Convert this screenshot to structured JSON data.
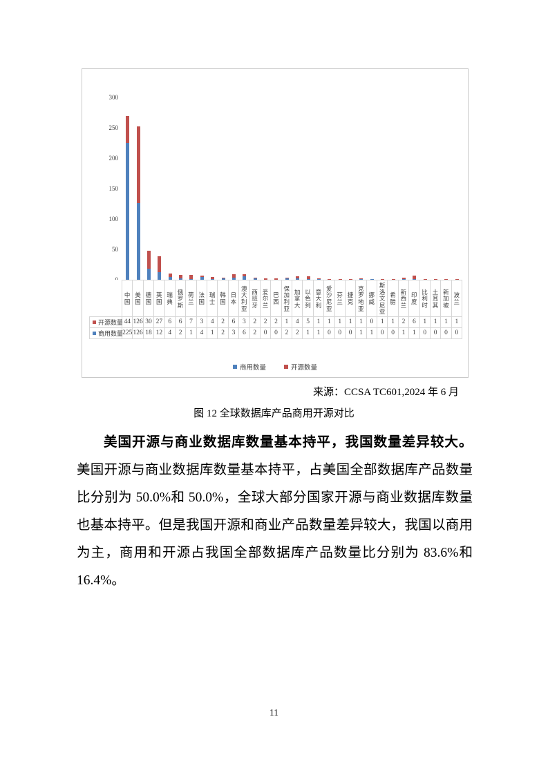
{
  "figure": {
    "source": "来源：CCSA TC601,2024 年 6 月",
    "caption": "图 12 全球数据库产品商用开源对比"
  },
  "chart_data": {
    "type": "bar",
    "stacked": true,
    "title": "",
    "xlabel": "",
    "ylabel": "",
    "ylim": [
      0,
      300
    ],
    "yticks": [
      0,
      50,
      100,
      150,
      200,
      250,
      300
    ],
    "grid": false,
    "legend_position": "bottom",
    "categories": [
      "中国",
      "美国",
      "德国",
      "英国",
      "瑞典",
      "俄罗斯",
      "荷兰",
      "法国",
      "瑞士",
      "韩国",
      "日本",
      "澳大利亚",
      "西班牙",
      "爱尔兰",
      "巴西",
      "保加利亚",
      "加拿大",
      "以色列",
      "意大利",
      "爱沙尼亚",
      "芬兰",
      "捷克",
      "克罗地亚",
      "挪威",
      "斯洛文尼亚",
      "希腊",
      "新西兰",
      "印度",
      "比利时",
      "土耳其",
      "新加坡",
      "波兰"
    ],
    "series": [
      {
        "name": "商用数量",
        "color": "#4F81BD",
        "values": [
          225,
          126,
          18,
          12,
          4,
          2,
          1,
          4,
          1,
          2,
          3,
          6,
          2,
          0,
          0,
          2,
          2,
          1,
          1,
          0,
          0,
          0,
          1,
          1,
          0,
          0,
          1,
          1,
          0,
          0,
          0,
          0
        ]
      },
      {
        "name": "开源数量",
        "color": "#C0504D",
        "values": [
          44,
          126,
          30,
          27,
          6,
          6,
          7,
          3,
          4,
          2,
          6,
          3,
          2,
          2,
          2,
          1,
          4,
          5,
          1,
          1,
          1,
          1,
          1,
          0,
          1,
          1,
          2,
          6,
          1,
          1,
          1,
          1
        ]
      }
    ],
    "table_row_series_order": [
      1,
      0
    ]
  },
  "paragraph": {
    "bold_lead": "美国开源与商业数据库数量基本持平，我国数量差异较大。",
    "body": "美国开源与商业数据库数量基本持平，占美国全部数据库产品数量比分别为 50.0%和 50.0%，全球大部分国家开源与商业数据库数量也基本持平。但是我国开源和商业产品数量差异较大，我国以商用为主，商用和开源占我国全部数据库产品数量比分别为 83.6%和 16.4%。"
  },
  "page": {
    "number": "11"
  }
}
